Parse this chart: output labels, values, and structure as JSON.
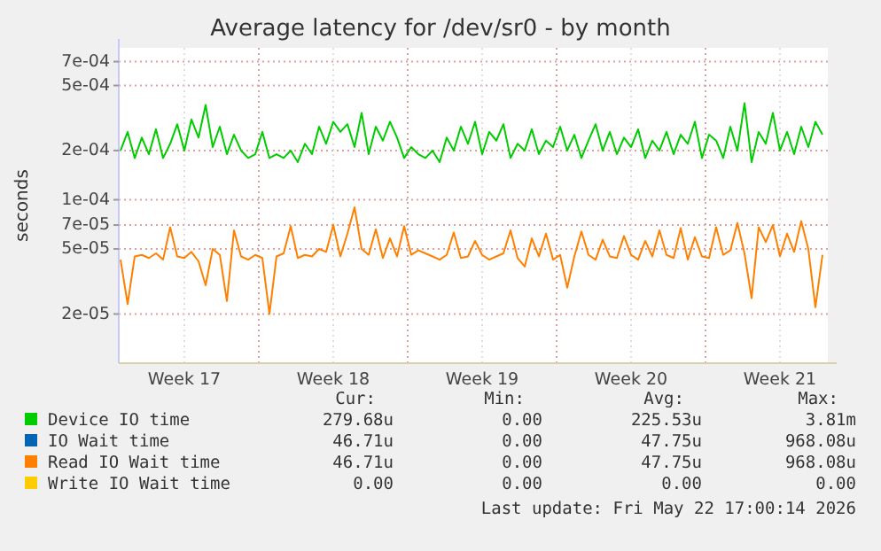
{
  "chart_data": {
    "type": "line",
    "title": "Average latency for /dev/sr0 - by month",
    "ylabel": "seconds",
    "log": "y",
    "grid": true,
    "legend": "bottom",
    "marker": "none",
    "line_style": "solid",
    "categories": [
      null,
      null,
      null,
      null,
      null,
      null,
      null,
      null,
      null,
      "Week 17",
      null,
      null,
      null,
      null,
      null,
      null,
      null,
      null,
      null,
      null,
      null,
      null,
      null,
      null,
      null,
      null,
      null,
      null,
      null,
      null,
      "Week 18",
      null,
      null,
      null,
      null,
      null,
      null,
      null,
      null,
      null,
      null,
      null,
      null,
      null,
      null,
      null,
      null,
      null,
      null,
      null,
      null,
      "Week 19",
      null,
      null,
      null,
      null,
      null,
      null,
      null,
      null,
      null,
      null,
      null,
      null,
      null,
      null,
      null,
      null,
      null,
      null,
      null,
      null,
      "Week 20",
      null,
      null,
      null,
      null,
      null,
      null,
      null,
      null,
      null,
      null,
      null,
      null,
      null,
      null,
      null,
      null,
      null,
      null,
      null,
      null,
      "Week 21",
      null,
      null,
      null,
      null,
      null,
      null
    ],
    "ylim": [
      1e-05,
      0.00085
    ],
    "yticks": [
      {
        "value": 2e-05,
        "label": "2e-05"
      },
      {
        "value": 5e-05,
        "label": "5e-05"
      },
      {
        "value": 7e-05,
        "label": "7e-05"
      },
      {
        "value": 0.0001,
        "label": "1e-04"
      },
      {
        "value": 0.0002,
        "label": "2e-04"
      },
      {
        "value": 0.0005,
        "label": "5e-04"
      },
      {
        "value": 0.0007,
        "label": "7e-04"
      }
    ],
    "series": [
      {
        "name": "Device IO time",
        "color": "#00cc00",
        "values": [
          0.0002,
          0.00026,
          0.00018,
          0.00024,
          0.00019,
          0.00027,
          0.00018,
          0.00022,
          0.00029,
          0.0002,
          0.00031,
          0.00024,
          0.00038,
          0.00021,
          0.00028,
          0.00019,
          0.00025,
          0.0002,
          0.00018,
          0.00019,
          0.00026,
          0.00018,
          0.00019,
          0.00018,
          0.0002,
          0.00017,
          0.00022,
          0.00019,
          0.00028,
          0.00022,
          0.0003,
          0.00026,
          0.00029,
          0.00021,
          0.00034,
          0.00019,
          0.00028,
          0.00023,
          0.0003,
          0.00024,
          0.00018,
          0.00021,
          0.00019,
          0.00018,
          0.0002,
          0.00017,
          0.00024,
          0.0002,
          0.00028,
          0.00022,
          0.0003,
          0.00019,
          0.00026,
          0.00023,
          0.00029,
          0.00018,
          0.00022,
          0.0002,
          0.00027,
          0.00019,
          0.00023,
          0.00021,
          0.00028,
          0.0002,
          0.00025,
          0.00018,
          0.00023,
          0.00029,
          0.0002,
          0.00026,
          0.00019,
          0.00024,
          0.00021,
          0.00027,
          0.00018,
          0.00023,
          0.0002,
          0.00026,
          0.00019,
          0.00025,
          0.00022,
          0.0003,
          0.00018,
          0.00025,
          0.00023,
          0.00018,
          0.00028,
          0.0002,
          0.00039,
          0.00017,
          0.00026,
          0.00022,
          0.00034,
          0.0002,
          0.00026,
          0.00019,
          0.00028,
          0.00021,
          0.0003,
          0.00025
        ]
      },
      {
        "name": "IO Wait time",
        "color": "#0066b3",
        "values": [
          null,
          null,
          null,
          null,
          null,
          null,
          null,
          null,
          null,
          null,
          null,
          null,
          null,
          null,
          null,
          null,
          null,
          null,
          null,
          null,
          null,
          null,
          null,
          null,
          null,
          null,
          null,
          null,
          null,
          null,
          null,
          null,
          null,
          null,
          null,
          null,
          null,
          null,
          null,
          null,
          null,
          null,
          null,
          null,
          null,
          null,
          null,
          null,
          null,
          null,
          null,
          null,
          null,
          null,
          null,
          null,
          null,
          null,
          null,
          null,
          null,
          null,
          null,
          null,
          null,
          null,
          null,
          null,
          null,
          null,
          null,
          null,
          null,
          null,
          null,
          null,
          null,
          null,
          null,
          null,
          null,
          null,
          null,
          null,
          null,
          null,
          null,
          null,
          null,
          null,
          null,
          null,
          null,
          null,
          null,
          null,
          null,
          null,
          null,
          null
        ]
      },
      {
        "name": "Read IO Wait time",
        "color": "#ff8000",
        "values": [
          4.3e-05,
          2.3e-05,
          4.5e-05,
          4.6e-05,
          4.4e-05,
          4.7e-05,
          4.3e-05,
          6.8e-05,
          4.5e-05,
          4.4e-05,
          4.8e-05,
          4.2e-05,
          3e-05,
          5e-05,
          4.6e-05,
          2.4e-05,
          6.5e-05,
          4.5e-05,
          4.3e-05,
          4.6e-05,
          4.4e-05,
          2e-05,
          4.5e-05,
          4.7e-05,
          6.9e-05,
          4.4e-05,
          4.6e-05,
          4.5e-05,
          5e-05,
          4.8e-05,
          7e-05,
          4.5e-05,
          6.2e-05,
          9e-05,
          5e-05,
          4.6e-05,
          6.6e-05,
          4.4e-05,
          5.8e-05,
          4.5e-05,
          6.9e-05,
          4.6e-05,
          4.9e-05,
          4.7e-05,
          4.5e-05,
          4.3e-05,
          4.6e-05,
          6.3e-05,
          4.4e-05,
          4.5e-05,
          5.6e-05,
          4.6e-05,
          4.3e-05,
          4.5e-05,
          4.7e-05,
          6.5e-05,
          4.4e-05,
          3.9e-05,
          5.8e-05,
          4.5e-05,
          6.2e-05,
          4.3e-05,
          4.6e-05,
          2.9e-05,
          4.5e-05,
          6.4e-05,
          4.6e-05,
          4.3e-05,
          5.7e-05,
          4.5e-05,
          4.4e-05,
          6e-05,
          4.6e-05,
          4.3e-05,
          5.6e-05,
          4.5e-05,
          6.5e-05,
          4.6e-05,
          4.4e-05,
          6.7e-05,
          4.3e-05,
          5.9e-05,
          4.5e-05,
          4.4e-05,
          6.8e-05,
          4.6e-05,
          4.9e-05,
          7.2e-05,
          4.7e-05,
          2.5e-05,
          6.8e-05,
          5.5e-05,
          7e-05,
          4.5e-05,
          6.2e-05,
          4.8e-05,
          7.4e-05,
          5e-05,
          2.2e-05,
          4.6e-05
        ]
      },
      {
        "name": "Write IO Wait time",
        "color": "#ffcc00",
        "values": [
          null,
          null,
          null,
          null,
          null,
          null,
          null,
          null,
          null,
          null,
          null,
          null,
          null,
          null,
          null,
          null,
          null,
          null,
          null,
          null,
          null,
          null,
          null,
          null,
          null,
          null,
          null,
          null,
          null,
          null,
          null,
          null,
          null,
          null,
          null,
          null,
          null,
          null,
          null,
          null,
          null,
          null,
          null,
          null,
          null,
          null,
          null,
          null,
          null,
          null,
          null,
          null,
          null,
          null,
          null,
          null,
          null,
          null,
          null,
          null,
          null,
          null,
          null,
          null,
          null,
          null,
          null,
          null,
          null,
          null,
          null,
          null,
          null,
          null,
          null,
          null,
          null,
          null,
          null,
          null,
          null,
          null,
          null,
          null,
          null,
          null,
          null,
          null,
          null,
          null,
          null,
          null,
          null,
          null,
          null,
          null,
          null,
          null,
          null,
          null
        ]
      }
    ],
    "annotations": [
      "Cur:",
      "Min:",
      "Avg:",
      "Max:",
      "279.68u",
      "0.00",
      "225.53u",
      "3.81m",
      "46.71u",
      "0.00",
      "47.75u",
      "968.08u",
      "46.71u",
      "0.00",
      "47.75u",
      "968.08u",
      "0.00",
      "0.00",
      "0.00",
      "0.00",
      "Last update: Fri May 22 17:00:14 2026"
    ]
  }
}
